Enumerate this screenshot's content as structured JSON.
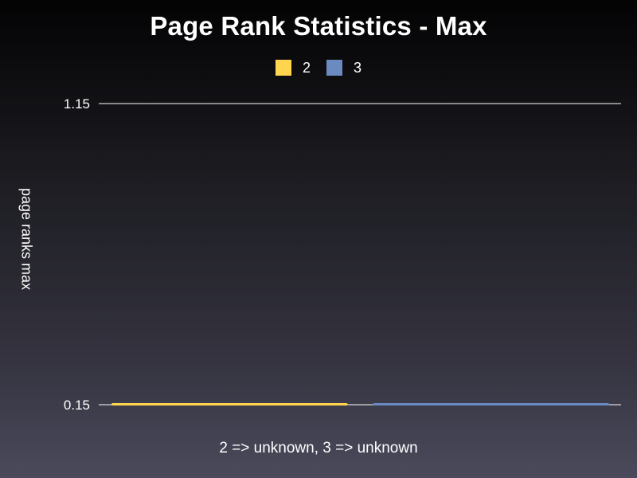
{
  "chart_data": {
    "type": "bar",
    "title": "Page Rank Statistics - Max",
    "xlabel": "2 => unknown, 3 => unknown",
    "ylabel": "page ranks max",
    "ylim": [
      0.15,
      1.15
    ],
    "yticks": [
      "1.15",
      "0.15"
    ],
    "legend_position": "top-center",
    "grid": true,
    "series": [
      {
        "name": "2",
        "values": [
          0.15
        ],
        "color": "#ffd54f"
      },
      {
        "name": "3",
        "values": [
          0.15
        ],
        "color": "#6a8ac0"
      }
    ]
  }
}
